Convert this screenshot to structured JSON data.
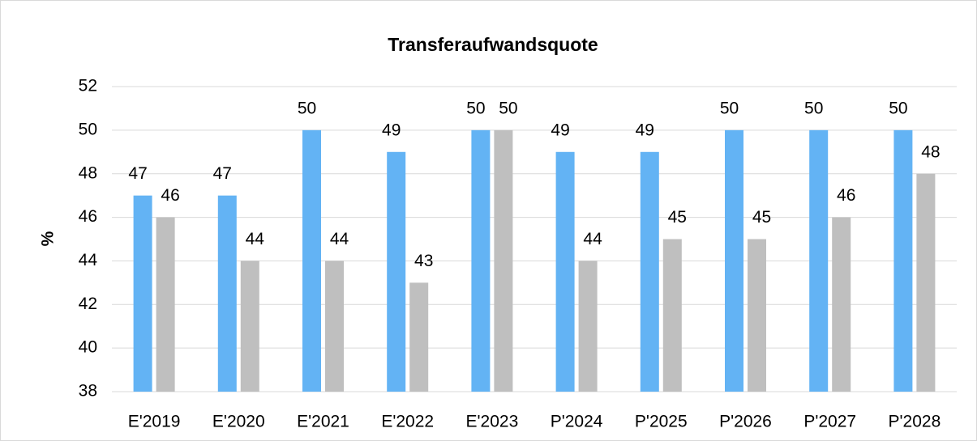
{
  "chart_data": {
    "type": "bar",
    "title": "Transferaufwandsquote",
    "y_label": "%",
    "categories": [
      "E'2019",
      "E'2020",
      "E'2021",
      "E'2022",
      "E'2023",
      "P'2024",
      "P'2025",
      "P'2026",
      "P'2027",
      "P'2028"
    ],
    "series": [
      {
        "color": "#63b3f4",
        "values": [
          47,
          47,
          50,
          49,
          50,
          49,
          49,
          50,
          50,
          50
        ]
      },
      {
        "color": "#bfbfbf",
        "values": [
          46,
          44,
          44,
          43,
          50,
          44,
          45,
          45,
          46,
          48
        ]
      }
    ],
    "ylim": [
      38,
      52
    ],
    "yticks": [
      38,
      40,
      42,
      44,
      46,
      48,
      50,
      52
    ],
    "grid": true
  }
}
